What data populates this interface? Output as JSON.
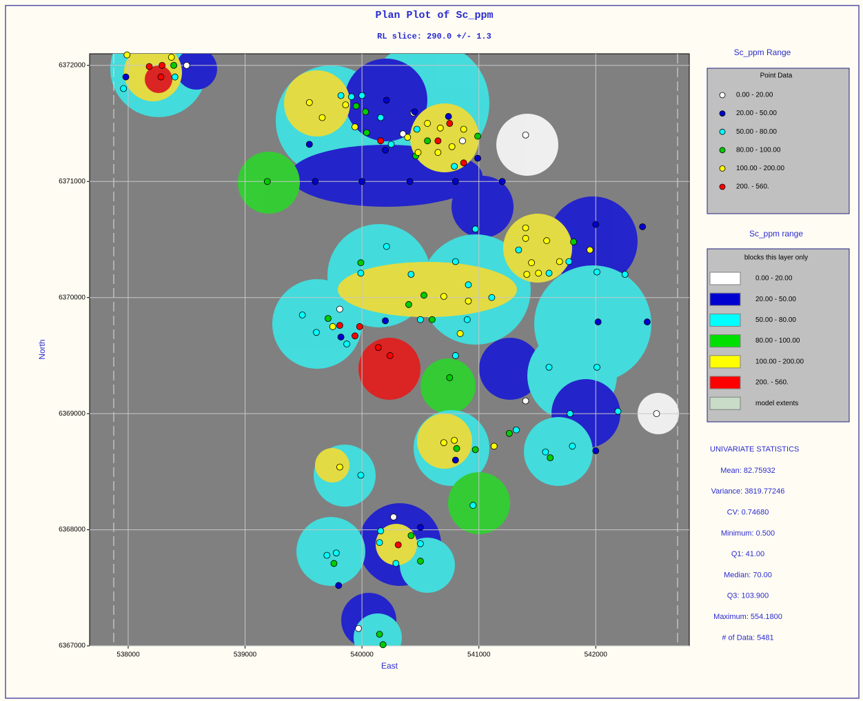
{
  "chart_data": {
    "type": "scatter",
    "title": "Plan Plot of Sc_ppm",
    "subtitle": "RL slice: 290.0 +/- 1.3",
    "x_label": "East",
    "y_label": "North",
    "xlim": [
      537670,
      542800
    ],
    "ylim": [
      6367000,
      6372100
    ],
    "xticks": [
      538000,
      539000,
      540000,
      541000,
      542000
    ],
    "yticks": [
      6367000,
      6368000,
      6369000,
      6370000,
      6371000,
      6372000
    ],
    "grid": true,
    "legend": {
      "title": "Sc_ppm Range",
      "subtitle": "Point Data"
    },
    "series": [
      {
        "name": "0.00 - 20.00",
        "color": "#ffffff",
        "x": [
          538500,
          540350,
          540440,
          541400,
          540860,
          539810,
          541400,
          542520,
          540270,
          539970
        ],
        "values": [
          6372000,
          6371410,
          6371590,
          6371400,
          6371350,
          6369900,
          6369110,
          6369000,
          6368110,
          6367150
        ]
      },
      {
        "name": "20.00 - 50.00",
        "color": "#0000d0",
        "x": [
          537980,
          540210,
          540450,
          540740,
          539550,
          539600,
          540000,
          540410,
          540800,
          541200,
          542000,
          542400,
          540200,
          542020,
          542440,
          539820,
          540800,
          542000,
          540500,
          539800,
          540200,
          540990
        ],
        "values": [
          6371900,
          6371700,
          6371600,
          6371560,
          6371320,
          6371000,
          6371000,
          6371000,
          6371000,
          6371000,
          6370630,
          6370610,
          6369800,
          6369790,
          6369790,
          6369660,
          6368600,
          6368680,
          6368020,
          6367520,
          6371270,
          6371200
        ]
      },
      {
        "name": "50.00 - 80.00",
        "color": "#00ffff",
        "x": [
          537960,
          538400,
          539820,
          539910,
          540000,
          540160,
          540250,
          540470,
          540790,
          540970,
          540210,
          541340,
          539990,
          540420,
          540800,
          540910,
          541110,
          541600,
          541770,
          542010,
          542250,
          539490,
          539610,
          539870,
          540500,
          540900,
          540800,
          541600,
          542010,
          541780,
          542190,
          541320,
          541570,
          541800,
          540950,
          539990,
          540160,
          540150,
          540500,
          540290,
          539700,
          539780
        ],
        "values": [
          6371800,
          6371900,
          6371740,
          6371730,
          6371740,
          6371550,
          6371320,
          6371450,
          6371130,
          6370590,
          6370440,
          6370410,
          6370210,
          6370200,
          6370310,
          6370110,
          6370000,
          6370210,
          6370310,
          6370220,
          6370200,
          6369850,
          6369700,
          6369600,
          6369810,
          6369810,
          6369500,
          6369400,
          6369400,
          6369000,
          6369020,
          6368860,
          6368670,
          6368720,
          6368210,
          6368470,
          6367990,
          6367890,
          6367880,
          6367710,
          6367780,
          6367800
        ]
      },
      {
        "name": "80.00 - 100.00",
        "color": "#00cc00",
        "x": [
          538390,
          539190,
          539950,
          540030,
          540040,
          540460,
          540560,
          540990,
          539990,
          540530,
          540400,
          540600,
          539710,
          540750,
          540810,
          541260,
          541610,
          541810,
          540970,
          540420,
          540500,
          539760,
          540150,
          540180
        ],
        "values": [
          6372000,
          6371000,
          6371650,
          6371600,
          6371420,
          6371220,
          6371350,
          6371390,
          6370300,
          6370020,
          6369940,
          6369810,
          6369820,
          6369310,
          6368700,
          6368830,
          6368620,
          6370480,
          6368690,
          6367950,
          6367730,
          6367710,
          6367100,
          6367010
        ]
      },
      {
        "name": "100.00 - 200.00",
        "color": "#ffff00",
        "x": [
          537990,
          538370,
          539550,
          539660,
          539860,
          539940,
          540390,
          540480,
          540560,
          540670,
          540770,
          540650,
          540870,
          541400,
          541400,
          541580,
          541950,
          541450,
          541690,
          541510,
          541410,
          540700,
          540910,
          539750,
          540840,
          540700,
          540790,
          541130,
          539810
        ],
        "values": [
          6372090,
          6372070,
          6371680,
          6371550,
          6371660,
          6371470,
          6371380,
          6371250,
          6371500,
          6371460,
          6371300,
          6371250,
          6371450,
          6370600,
          6370510,
          6370490,
          6370410,
          6370300,
          6370310,
          6370210,
          6370200,
          6370010,
          6369970,
          6369750,
          6369690,
          6368750,
          6368770,
          6368720,
          6368540
        ]
      },
      {
        "name": "200. - 560.",
        "color": "#ff0000",
        "x": [
          538180,
          538290,
          538280,
          540160,
          540650,
          540750,
          540870,
          539810,
          539980,
          539940,
          540140,
          540240,
          540310
        ],
        "values": [
          6371990,
          6372000,
          6371900,
          6371350,
          6371350,
          6371500,
          6371160,
          6369760,
          6369750,
          6369670,
          6369570,
          6369500,
          6367870
        ]
      }
    ],
    "block_legend": {
      "title": "Sc_ppm range",
      "subtitle": "blocks this layer only",
      "items": [
        {
          "label": "0.00 - 20.00",
          "color": "#ffffff"
        },
        {
          "label": "20.00 - 50.00",
          "color": "#0000d0"
        },
        {
          "label": "50.00 - 80.00",
          "color": "#00ffff"
        },
        {
          "label": "80.00 - 100.00",
          "color": "#00e000"
        },
        {
          "label": "100.00 - 200.00",
          "color": "#ffff00"
        },
        {
          "label": "200. - 560.",
          "color": "#ff0000"
        },
        {
          "label": "model extents",
          "color": "#c8dcc8"
        }
      ]
    },
    "statistics": {
      "title": "UNIVARIATE STATISTICS",
      "items": [
        "Mean: 82.75932",
        "Variance: 3819.77246",
        "CV: 0.74680",
        "Minimum: 0.500",
        "Q1: 41.00",
        "Median: 70.00",
        "Q3: 103.900",
        "Maximum: 554.1800",
        "# of Data: 5481"
      ]
    }
  }
}
